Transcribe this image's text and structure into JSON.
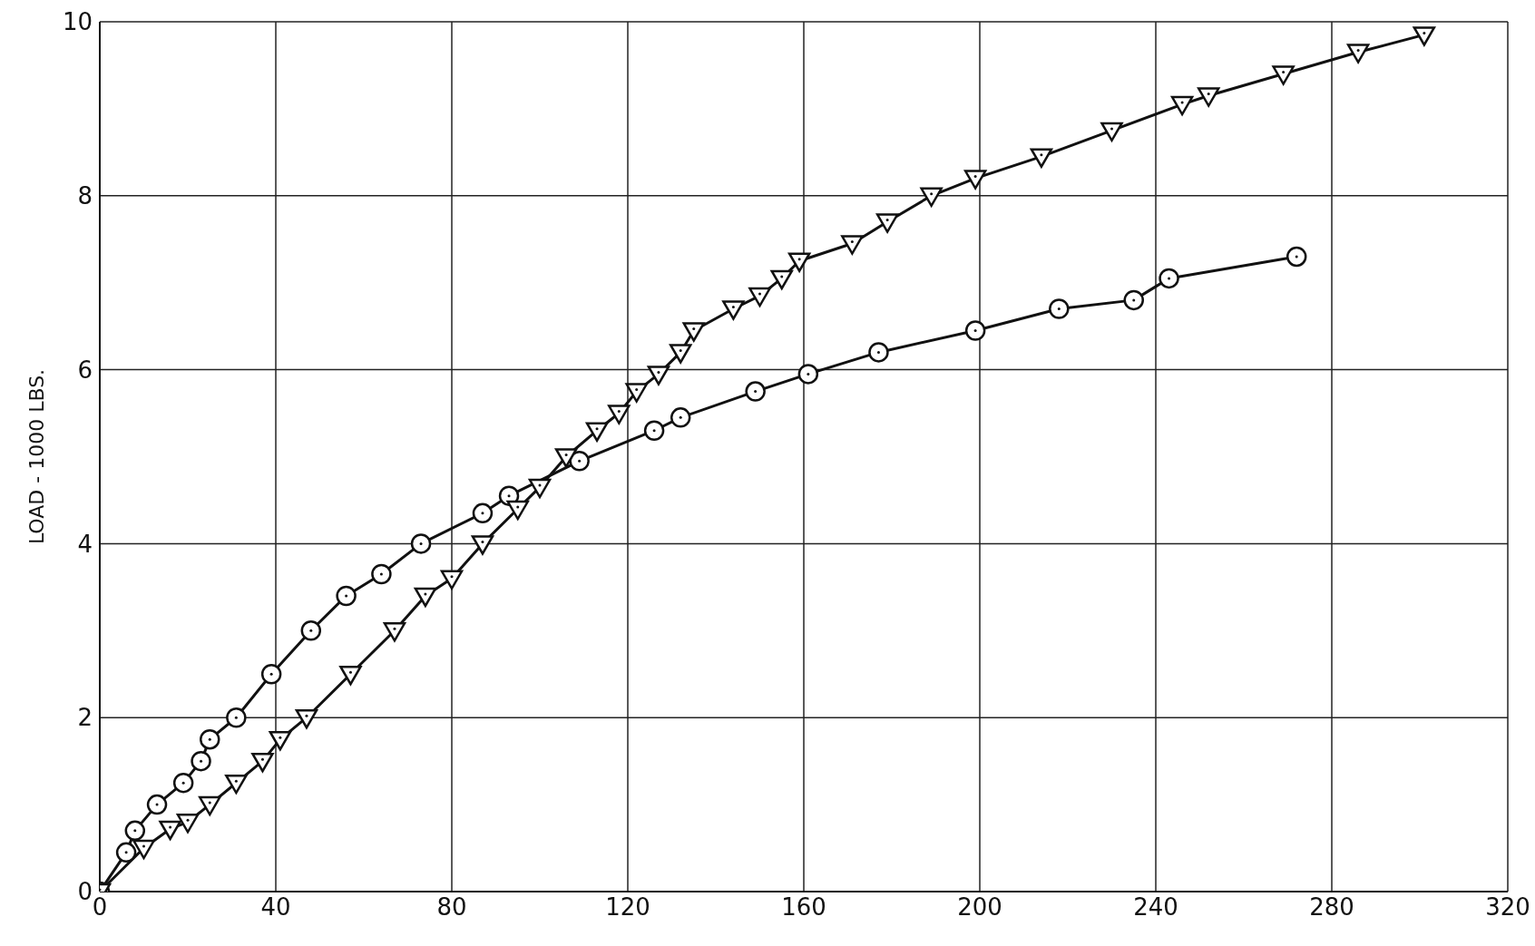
{
  "chart_data": {
    "type": "line",
    "ylabel": "LOAD - 1000 LBS.",
    "xlim": [
      0,
      320
    ],
    "xticks": [
      0,
      40,
      80,
      120,
      160,
      200,
      240,
      280,
      320
    ],
    "ylim": [
      0,
      10
    ],
    "yticks": [
      0,
      2,
      4,
      6,
      8,
      10
    ],
    "grid": true,
    "series": [
      {
        "color": "#111111",
        "marker": "circle",
        "x": [
          0,
          6,
          8,
          13,
          19,
          23,
          25,
          31,
          39,
          48,
          56,
          64,
          73,
          87,
          93,
          109,
          126,
          132,
          149,
          161,
          177,
          199,
          218,
          235,
          243,
          272
        ],
        "values": [
          0,
          0.45,
          0.7,
          1.0,
          1.25,
          1.5,
          1.75,
          2.0,
          2.5,
          3.0,
          3.4,
          3.65,
          4.0,
          4.35,
          4.55,
          4.95,
          5.3,
          5.45,
          5.75,
          5.95,
          6.2,
          6.45,
          6.7,
          6.8,
          7.05,
          7.3
        ]
      },
      {
        "color": "#111111",
        "marker": "triangle",
        "x": [
          0,
          10,
          16,
          20,
          25,
          31,
          37,
          41,
          47,
          57,
          67,
          74,
          80,
          87,
          95,
          100,
          106,
          113,
          118,
          122,
          127,
          132,
          135,
          144,
          150,
          155,
          159,
          171,
          179,
          189,
          199,
          214,
          230,
          246,
          252,
          269,
          286,
          301
        ],
        "values": [
          0,
          0.5,
          0.72,
          0.8,
          1.0,
          1.25,
          1.5,
          1.75,
          2.0,
          2.5,
          3.0,
          3.4,
          3.6,
          4.0,
          4.4,
          4.65,
          5.0,
          5.3,
          5.5,
          5.75,
          5.95,
          6.2,
          6.45,
          6.7,
          6.85,
          7.05,
          7.25,
          7.45,
          7.7,
          8.0,
          8.2,
          8.45,
          8.75,
          9.05,
          9.15,
          9.4,
          9.65,
          9.85
        ]
      }
    ]
  }
}
